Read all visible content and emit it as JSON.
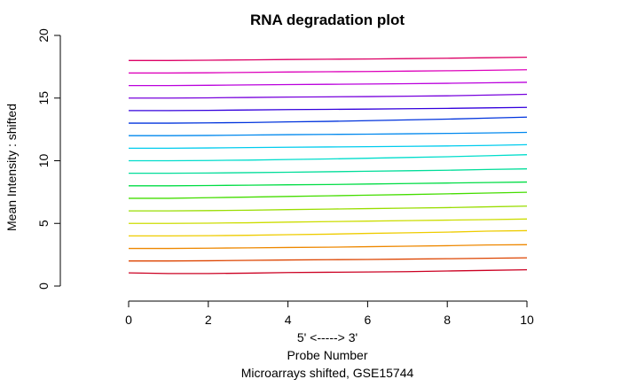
{
  "chart_data": {
    "type": "line",
    "title": "RNA degradation plot",
    "xlabel_lines": [
      "5' <-----> 3'",
      "Probe Number"
    ],
    "subtitle": "Microarrays shifted, GSE15744",
    "ylabel": "Mean Intensity : shifted",
    "xlim": [
      0,
      10
    ],
    "ylim": [
      0,
      20
    ],
    "x_ticks": [
      0,
      2,
      4,
      6,
      8,
      10
    ],
    "y_ticks": [
      0,
      5,
      10,
      15,
      20
    ],
    "x": [
      0,
      1,
      2,
      3,
      4,
      5,
      6,
      7,
      8,
      9,
      10
    ],
    "series": [
      {
        "color": "#cc0022",
        "values": [
          1.05,
          1.0,
          1.0,
          1.03,
          1.08,
          1.1,
          1.12,
          1.15,
          1.2,
          1.25,
          1.3
        ]
      },
      {
        "color": "#dd4400",
        "values": [
          2.0,
          2.0,
          2.02,
          2.05,
          2.08,
          2.1,
          2.12,
          2.15,
          2.18,
          2.22,
          2.25
        ]
      },
      {
        "color": "#ee8800",
        "values": [
          3.0,
          3.0,
          3.02,
          3.05,
          3.08,
          3.1,
          3.14,
          3.18,
          3.22,
          3.28,
          3.3
        ]
      },
      {
        "color": "#eecc00",
        "values": [
          4.0,
          4.0,
          4.02,
          4.05,
          4.1,
          4.14,
          4.2,
          4.25,
          4.3,
          4.38,
          4.42
        ]
      },
      {
        "color": "#ccdd00",
        "values": [
          5.0,
          5.0,
          5.02,
          5.05,
          5.1,
          5.14,
          5.18,
          5.22,
          5.26,
          5.3,
          5.35
        ]
      },
      {
        "color": "#99dd00",
        "values": [
          6.0,
          6.0,
          6.02,
          6.05,
          6.1,
          6.14,
          6.18,
          6.22,
          6.26,
          6.32,
          6.38
        ]
      },
      {
        "color": "#44dd00",
        "values": [
          7.0,
          7.0,
          7.05,
          7.1,
          7.15,
          7.2,
          7.25,
          7.3,
          7.36,
          7.42,
          7.48
        ]
      },
      {
        "color": "#00dd44",
        "values": [
          8.0,
          8.0,
          8.02,
          8.05,
          8.08,
          8.1,
          8.14,
          8.18,
          8.22,
          8.26,
          8.3
        ]
      },
      {
        "color": "#00dd99",
        "values": [
          9.0,
          9.0,
          9.02,
          9.05,
          9.08,
          9.12,
          9.16,
          9.2,
          9.24,
          9.3,
          9.35
        ]
      },
      {
        "color": "#00ddcc",
        "values": [
          10.0,
          10.0,
          10.02,
          10.05,
          10.1,
          10.14,
          10.2,
          10.26,
          10.32,
          10.4,
          10.48
        ]
      },
      {
        "color": "#00ccee",
        "values": [
          11.0,
          11.0,
          11.02,
          11.05,
          11.08,
          11.1,
          11.12,
          11.15,
          11.18,
          11.22,
          11.28
        ]
      },
      {
        "color": "#0088ee",
        "values": [
          12.0,
          12.0,
          12.02,
          12.05,
          12.08,
          12.1,
          12.12,
          12.15,
          12.18,
          12.22,
          12.26
        ]
      },
      {
        "color": "#0033dd",
        "values": [
          13.0,
          13.0,
          13.02,
          13.05,
          13.1,
          13.14,
          13.2,
          13.26,
          13.32,
          13.4,
          13.48
        ]
      },
      {
        "color": "#3300dd",
        "values": [
          14.0,
          14.0,
          14.02,
          14.05,
          14.08,
          14.1,
          14.12,
          14.15,
          14.18,
          14.22,
          14.26
        ]
      },
      {
        "color": "#7700dd",
        "values": [
          15.0,
          15.0,
          15.02,
          15.05,
          15.08,
          15.1,
          15.12,
          15.15,
          15.18,
          15.24,
          15.3
        ]
      },
      {
        "color": "#bb00dd",
        "values": [
          16.0,
          16.0,
          16.02,
          16.05,
          16.08,
          16.1,
          16.12,
          16.15,
          16.18,
          16.22,
          16.26
        ]
      },
      {
        "color": "#dd00bb",
        "values": [
          17.0,
          17.0,
          17.02,
          17.05,
          17.08,
          17.1,
          17.12,
          17.15,
          17.18,
          17.22,
          17.26
        ]
      },
      {
        "color": "#dd0066",
        "values": [
          18.0,
          18.0,
          18.02,
          18.05,
          18.08,
          18.1,
          18.12,
          18.15,
          18.18,
          18.22,
          18.26
        ]
      }
    ],
    "grid": false,
    "legend": "none"
  }
}
